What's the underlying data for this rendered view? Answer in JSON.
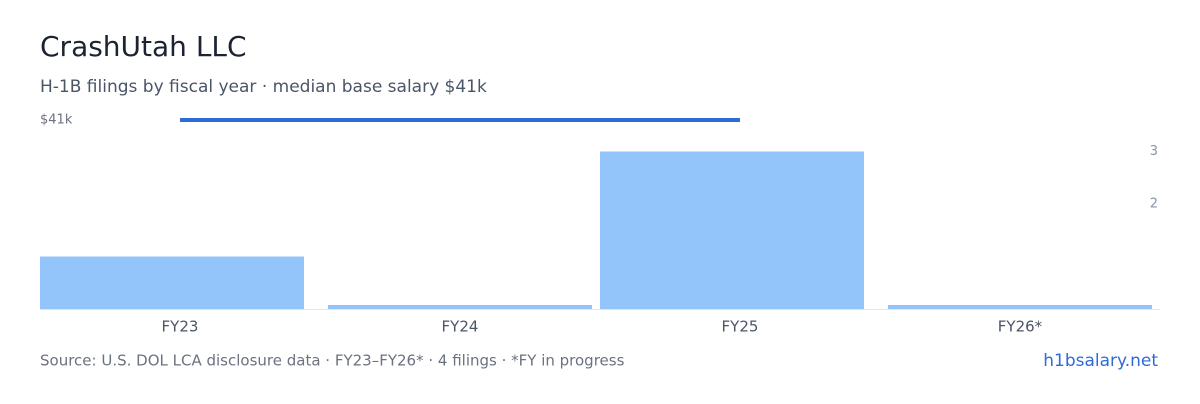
{
  "chart_data": {
    "type": "bar",
    "title": "CrashUtah LLC",
    "subtitle": "H-1B filings by fiscal year · median base salary $41k",
    "categories": [
      "FY23",
      "FY24",
      "FY25",
      "FY26*"
    ],
    "series": [
      {
        "name": "Filings",
        "color": "#93c5fb",
        "axis": "y2",
        "values": [
          1,
          0,
          3,
          0
        ]
      },
      {
        "name": "Median base salary",
        "color": "#2f6bd6",
        "values": [
          41000,
          41000,
          41000,
          null
        ]
      }
    ],
    "ylim": [
      0,
      41000
    ],
    "yticks": [
      {
        "value": 41000,
        "label": "$41k"
      }
    ],
    "y2lim": [
      0,
      3.6
    ],
    "y2ticks": [
      2,
      3
    ],
    "source": "Source: U.S. DOL LCA disclosure data · FY23–FY26* · 4 filings · *FY in progress",
    "site": "h1bsalary.net"
  }
}
